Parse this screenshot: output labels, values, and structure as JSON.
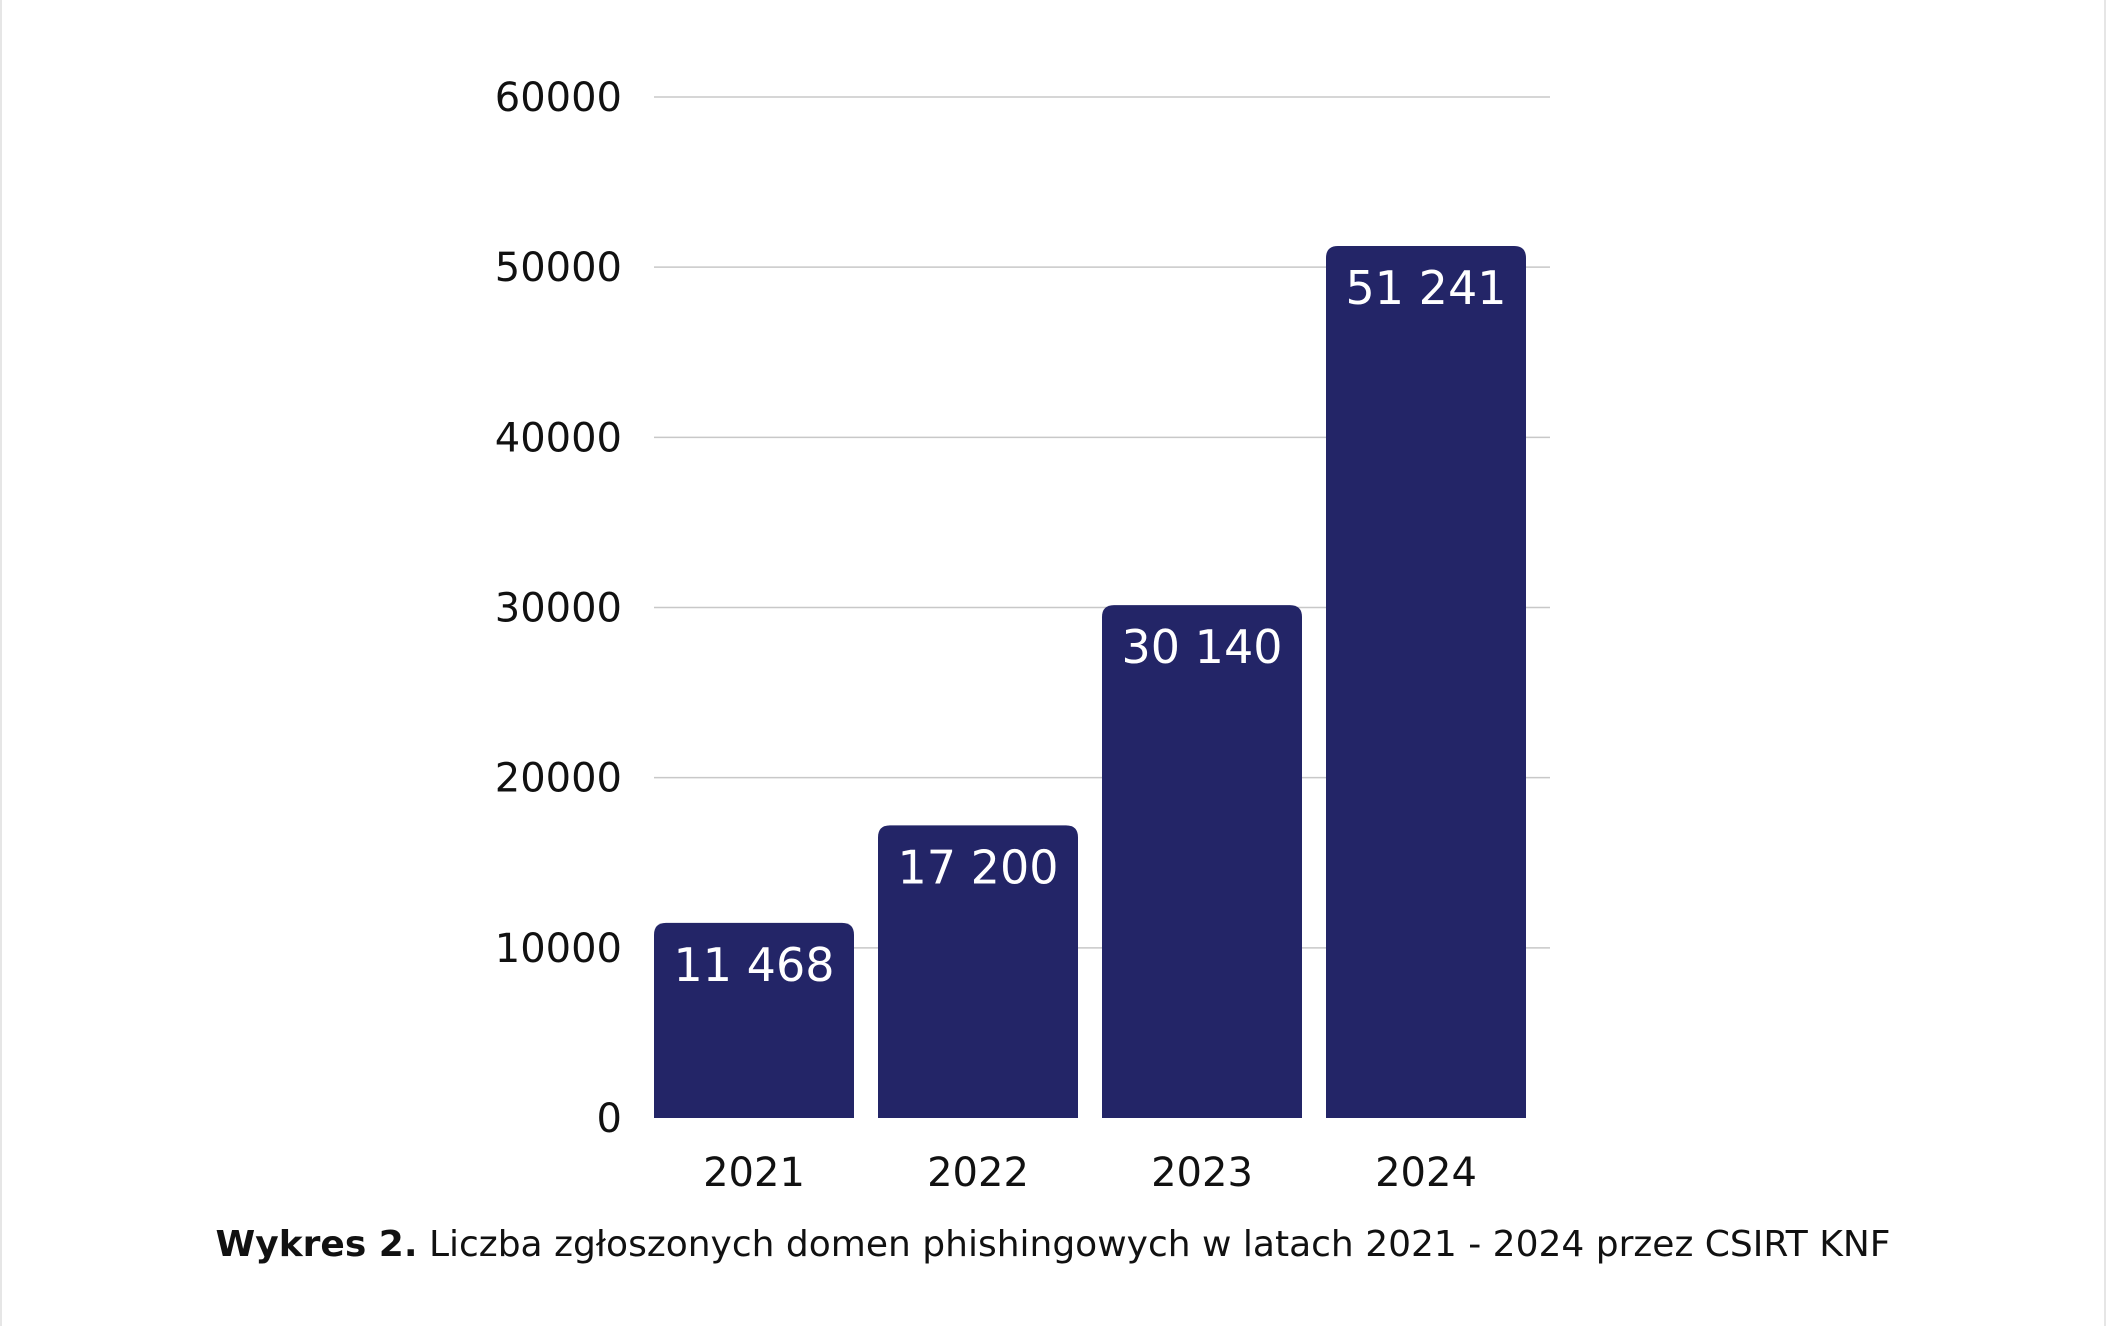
{
  "chart_data": {
    "type": "bar",
    "categories": [
      "2021",
      "2022",
      "2023",
      "2024"
    ],
    "values": [
      11468,
      17200,
      30140,
      51241
    ],
    "value_labels": [
      "11 468",
      "17 200",
      "30 140",
      "51 241"
    ],
    "ylim": [
      0,
      60000
    ],
    "yticks": [
      0,
      10000,
      20000,
      30000,
      40000,
      50000,
      60000
    ],
    "ytick_labels": [
      "0",
      "10000",
      "20000",
      "30000",
      "40000",
      "50000",
      "60000"
    ],
    "grid": true,
    "legend": "none",
    "title": "",
    "xlabel": "",
    "ylabel": ""
  },
  "colors": {
    "bar": "#232567",
    "grid": "#c8c8c8",
    "value_label": "#ffffff",
    "axis_text": "#111111"
  },
  "caption": {
    "label": "Wykres 2.",
    "text": " Liczba zgłoszonych domen phishingowych w latach 2021 - 2024 przez CSIRT KNF"
  }
}
